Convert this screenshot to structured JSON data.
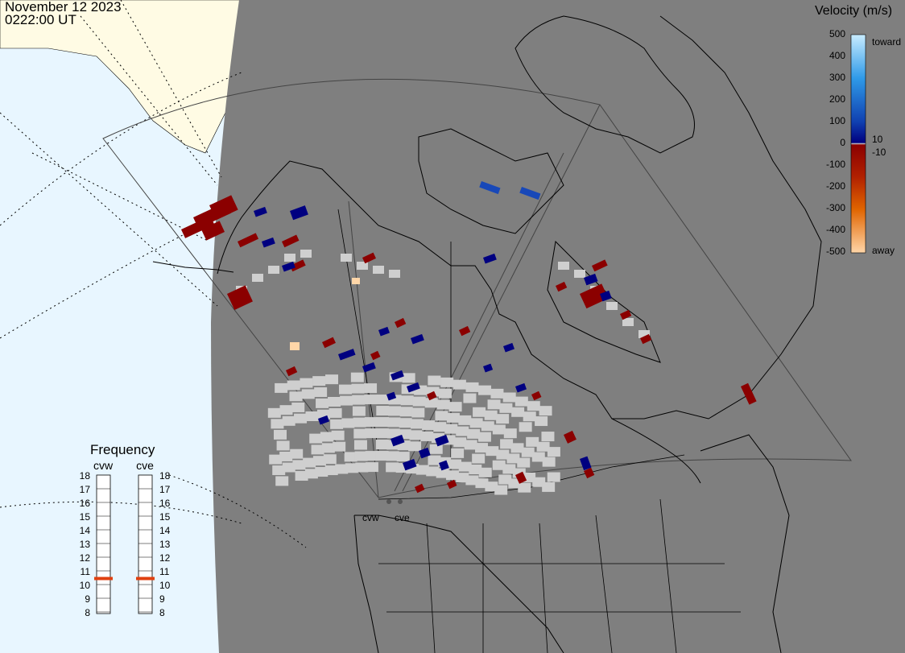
{
  "header": {
    "date": "November 12 2023",
    "time": "0222:00 UT"
  },
  "velocity_scale": {
    "title": "Velocity (m/s)",
    "tick_labels": [
      "500",
      "400",
      "300",
      "200",
      "100",
      "10",
      "0",
      "-10",
      "-100",
      "-200",
      "-300",
      "-400",
      "-500"
    ],
    "toward_label": "toward",
    "away_label": "away",
    "colors": {
      "toward_strong": "#c8ecff",
      "toward_mid": "#2f9ae8",
      "toward_weak": "#000080",
      "zero": "#d0d0d0",
      "away_weak": "#8b0000",
      "away_mid": "#e06400",
      "away_strong": "#ffd6a8"
    }
  },
  "frequency": {
    "title": "Frequency",
    "radars": [
      {
        "name": "cvw",
        "value_mhz": 11
      },
      {
        "name": "cve",
        "value_mhz": 11
      }
    ],
    "scale_labels": [
      "18",
      "17",
      "16",
      "15",
      "14",
      "13",
      "12",
      "11",
      "10",
      "9",
      "8"
    ],
    "marker_color": "#e04010"
  },
  "map": {
    "radar_labels": [
      "cvw",
      "cve"
    ],
    "colors": {
      "night_land_fill": "#7f7f7f",
      "ocean_day": "#e8f6ff",
      "land_day": "#fffbe4",
      "ground_scatter": "#cfcfcf",
      "coastline": "#000000"
    }
  }
}
